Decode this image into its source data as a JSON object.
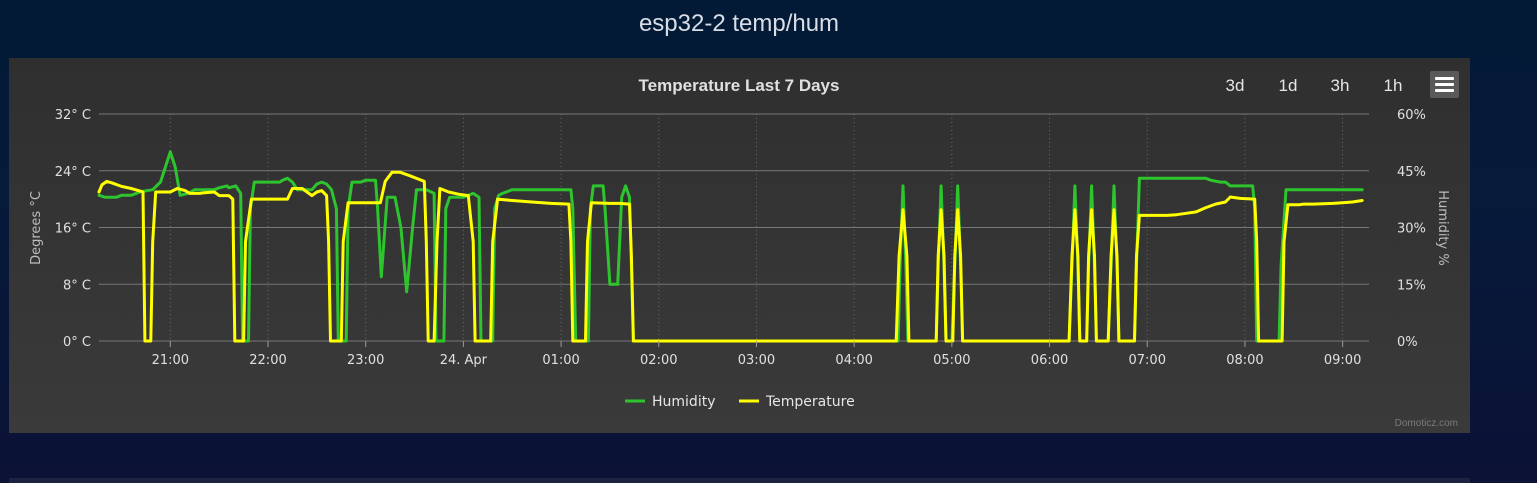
{
  "page": {
    "title": "esp32-2 temp/hum"
  },
  "toolbar": {
    "range_buttons": [
      "3d",
      "1d",
      "3h",
      "1h"
    ],
    "menu_icon": "hamburger-menu-icon"
  },
  "credits": "Domoticz.com",
  "colors": {
    "humidity": "#2ec42e",
    "temperature": "#ffff00",
    "panel": "#333333",
    "grid": "#707070"
  },
  "chart_data": {
    "type": "line",
    "title": "Temperature Last 7 Days",
    "x_axis": {
      "tick_labels": [
        "21:00",
        "22:00",
        "23:00",
        "24. Apr",
        "01:00",
        "02:00",
        "03:00",
        "04:00",
        "05:00",
        "06:00",
        "07:00",
        "08:00",
        "09:00"
      ],
      "tick_hours": [
        21,
        22,
        23,
        24,
        25,
        26,
        27,
        28,
        29,
        30,
        31,
        32,
        33
      ],
      "range_hours": [
        20.27,
        33.27
      ],
      "grid": "dotted vertical"
    },
    "y_axis_left": {
      "label": "Degrees °C",
      "tick_labels": [
        "0° C",
        "8° C",
        "16° C",
        "24° C",
        "32° C"
      ],
      "ticks": [
        0,
        8,
        16,
        24,
        32
      ],
      "range": [
        0,
        32
      ]
    },
    "y_axis_right": {
      "label": "Humidity %",
      "tick_labels": [
        "0%",
        "15%",
        "30%",
        "45%",
        "60%"
      ],
      "ticks": [
        0,
        15,
        30,
        45,
        60
      ],
      "range": [
        0,
        60
      ]
    },
    "legend": {
      "placement": "bottom-center",
      "items": [
        "Humidity",
        "Temperature"
      ]
    },
    "series": [
      {
        "name": "Humidity",
        "axis": "right",
        "color": "#2ec42e",
        "points": [
          [
            20.27,
            38.5
          ],
          [
            20.33,
            38
          ],
          [
            20.45,
            38
          ],
          [
            20.5,
            38.5
          ],
          [
            20.6,
            38.5
          ],
          [
            20.7,
            39.5
          ],
          [
            20.82,
            40
          ],
          [
            20.9,
            42
          ],
          [
            20.95,
            46
          ],
          [
            21.0,
            50
          ],
          [
            21.05,
            46
          ],
          [
            21.1,
            38.5
          ],
          [
            21.18,
            39
          ],
          [
            21.25,
            40
          ],
          [
            21.4,
            40
          ],
          [
            21.45,
            40
          ],
          [
            21.5,
            40.5
          ],
          [
            21.58,
            41
          ],
          [
            21.6,
            40.5
          ],
          [
            21.67,
            41
          ],
          [
            21.72,
            39
          ],
          [
            21.74,
            0
          ],
          [
            21.8,
            0
          ],
          [
            21.82,
            35
          ],
          [
            21.86,
            42
          ],
          [
            22.0,
            42
          ],
          [
            22.1,
            42
          ],
          [
            22.12,
            42
          ],
          [
            22.15,
            42.5
          ],
          [
            22.2,
            43
          ],
          [
            22.25,
            42
          ],
          [
            22.3,
            40
          ],
          [
            22.45,
            40
          ],
          [
            22.5,
            41.5
          ],
          [
            22.55,
            42
          ],
          [
            22.6,
            41.5
          ],
          [
            22.65,
            40
          ],
          [
            22.7,
            35
          ],
          [
            22.72,
            0
          ],
          [
            22.8,
            0
          ],
          [
            22.82,
            35
          ],
          [
            22.86,
            42
          ],
          [
            22.95,
            42
          ],
          [
            23.0,
            42.5
          ],
          [
            23.05,
            42.5
          ],
          [
            23.1,
            42.5
          ],
          [
            23.12,
            36
          ],
          [
            23.16,
            17
          ],
          [
            23.22,
            38
          ],
          [
            23.3,
            38
          ],
          [
            23.36,
            30
          ],
          [
            23.42,
            13
          ],
          [
            23.48,
            30
          ],
          [
            23.52,
            40
          ],
          [
            23.62,
            40
          ],
          [
            23.7,
            39
          ],
          [
            23.72,
            0
          ],
          [
            23.8,
            0
          ],
          [
            23.82,
            35
          ],
          [
            23.86,
            38
          ],
          [
            23.95,
            38
          ],
          [
            24.0,
            38
          ],
          [
            24.05,
            38.5
          ],
          [
            24.1,
            39
          ],
          [
            24.16,
            38
          ],
          [
            24.18,
            0
          ],
          [
            24.3,
            0
          ],
          [
            24.32,
            35
          ],
          [
            24.36,
            38.5
          ],
          [
            24.4,
            39
          ],
          [
            24.5,
            40
          ],
          [
            24.9,
            40
          ],
          [
            25.1,
            40
          ],
          [
            25.12,
            35
          ],
          [
            25.15,
            0
          ],
          [
            25.28,
            0
          ],
          [
            25.3,
            35
          ],
          [
            25.33,
            41
          ],
          [
            25.43,
            41
          ],
          [
            25.45,
            35
          ],
          [
            25.5,
            15
          ],
          [
            25.58,
            15
          ],
          [
            25.62,
            38
          ],
          [
            25.66,
            41
          ],
          [
            25.7,
            38
          ],
          [
            25.72,
            20
          ],
          [
            25.74,
            0
          ],
          [
            26.0,
            0
          ],
          [
            27.0,
            0
          ],
          [
            28.0,
            0
          ],
          [
            28.4,
            0
          ],
          [
            28.45,
            0
          ],
          [
            28.47,
            20
          ],
          [
            28.5,
            41
          ],
          [
            28.53,
            20
          ],
          [
            28.55,
            0
          ],
          [
            28.84,
            0
          ],
          [
            28.86,
            20
          ],
          [
            28.89,
            41
          ],
          [
            28.92,
            20
          ],
          [
            28.94,
            0
          ],
          [
            29.0,
            0
          ],
          [
            29.03,
            20
          ],
          [
            29.06,
            41
          ],
          [
            29.09,
            20
          ],
          [
            29.11,
            0
          ],
          [
            30.0,
            0
          ],
          [
            30.2,
            0
          ],
          [
            30.23,
            20
          ],
          [
            30.26,
            41
          ],
          [
            30.29,
            20
          ],
          [
            30.31,
            0
          ],
          [
            30.38,
            0
          ],
          [
            30.4,
            20
          ],
          [
            30.43,
            41
          ],
          [
            30.46,
            20
          ],
          [
            30.48,
            0
          ],
          [
            30.6,
            0
          ],
          [
            30.63,
            20
          ],
          [
            30.66,
            41
          ],
          [
            30.69,
            20
          ],
          [
            30.71,
            0
          ],
          [
            30.87,
            0
          ],
          [
            30.89,
            20
          ],
          [
            30.92,
            43
          ],
          [
            31.2,
            43
          ],
          [
            31.5,
            43
          ],
          [
            31.6,
            43
          ],
          [
            31.65,
            42.5
          ],
          [
            31.75,
            42
          ],
          [
            31.8,
            42
          ],
          [
            31.85,
            41
          ],
          [
            32.0,
            41
          ],
          [
            32.08,
            41
          ],
          [
            32.1,
            35
          ],
          [
            32.12,
            0
          ],
          [
            32.35,
            0
          ],
          [
            32.37,
            20
          ],
          [
            32.42,
            40
          ],
          [
            32.6,
            40
          ],
          [
            33.0,
            40
          ],
          [
            33.2,
            40
          ]
        ]
      },
      {
        "name": "Temperature",
        "axis": "left",
        "color": "#ffff00",
        "points": [
          [
            20.27,
            21
          ],
          [
            20.3,
            22
          ],
          [
            20.35,
            22.5
          ],
          [
            20.4,
            22.3
          ],
          [
            20.5,
            21.8
          ],
          [
            20.6,
            21.5
          ],
          [
            20.7,
            21.1
          ],
          [
            20.72,
            21
          ],
          [
            20.74,
            0
          ],
          [
            20.8,
            0
          ],
          [
            20.82,
            14
          ],
          [
            20.85,
            21
          ],
          [
            20.9,
            21
          ],
          [
            21.0,
            21
          ],
          [
            21.07,
            21.5
          ],
          [
            21.15,
            21.2
          ],
          [
            21.2,
            20.8
          ],
          [
            21.3,
            20.8
          ],
          [
            21.35,
            20.9
          ],
          [
            21.45,
            21
          ],
          [
            21.5,
            20.5
          ],
          [
            21.6,
            20.5
          ],
          [
            21.64,
            20
          ],
          [
            21.66,
            0
          ],
          [
            21.75,
            0
          ],
          [
            21.77,
            14
          ],
          [
            21.83,
            20
          ],
          [
            22.1,
            20
          ],
          [
            22.2,
            20
          ],
          [
            22.25,
            21.5
          ],
          [
            22.35,
            21.5
          ],
          [
            22.45,
            20.5
          ],
          [
            22.5,
            21
          ],
          [
            22.55,
            21.2
          ],
          [
            22.6,
            20.5
          ],
          [
            22.62,
            14
          ],
          [
            22.64,
            0
          ],
          [
            22.75,
            0
          ],
          [
            22.77,
            14
          ],
          [
            22.82,
            19.5
          ],
          [
            23.0,
            19.5
          ],
          [
            23.1,
            19.5
          ],
          [
            23.15,
            19.5
          ],
          [
            23.2,
            22.5
          ],
          [
            23.27,
            23.8
          ],
          [
            23.35,
            23.8
          ],
          [
            23.45,
            23.3
          ],
          [
            23.6,
            22.5
          ],
          [
            23.62,
            14
          ],
          [
            23.64,
            0
          ],
          [
            23.7,
            0
          ],
          [
            23.73,
            14
          ],
          [
            23.76,
            21.5
          ],
          [
            23.85,
            21
          ],
          [
            23.95,
            20.7
          ],
          [
            24.05,
            20.5
          ],
          [
            24.1,
            14
          ],
          [
            24.12,
            0
          ],
          [
            24.28,
            0
          ],
          [
            24.3,
            14
          ],
          [
            24.35,
            20
          ],
          [
            24.5,
            19.8
          ],
          [
            24.7,
            19.6
          ],
          [
            24.9,
            19.4
          ],
          [
            25.08,
            19.3
          ],
          [
            25.1,
            14
          ],
          [
            25.12,
            0
          ],
          [
            25.25,
            0
          ],
          [
            25.27,
            14
          ],
          [
            25.31,
            19.5
          ],
          [
            25.5,
            19.4
          ],
          [
            25.6,
            19.4
          ],
          [
            25.7,
            19.3
          ],
          [
            25.72,
            12
          ],
          [
            25.74,
            0
          ],
          [
            26.0,
            0
          ],
          [
            27.0,
            0
          ],
          [
            28.0,
            0
          ],
          [
            28.4,
            0
          ],
          [
            28.43,
            0
          ],
          [
            28.46,
            12
          ],
          [
            28.5,
            18.5
          ],
          [
            28.54,
            12
          ],
          [
            28.56,
            0
          ],
          [
            28.84,
            0
          ],
          [
            28.86,
            12
          ],
          [
            28.89,
            18.5
          ],
          [
            28.92,
            12
          ],
          [
            28.94,
            0
          ],
          [
            29.01,
            0
          ],
          [
            29.03,
            12
          ],
          [
            29.06,
            18.5
          ],
          [
            29.09,
            12
          ],
          [
            29.11,
            0
          ],
          [
            30.0,
            0
          ],
          [
            30.2,
            0
          ],
          [
            30.23,
            12
          ],
          [
            30.26,
            18.5
          ],
          [
            30.29,
            12
          ],
          [
            30.31,
            0
          ],
          [
            30.38,
            0
          ],
          [
            30.4,
            12
          ],
          [
            30.43,
            18.5
          ],
          [
            30.46,
            12
          ],
          [
            30.48,
            0
          ],
          [
            30.6,
            0
          ],
          [
            30.63,
            12
          ],
          [
            30.66,
            18.5
          ],
          [
            30.69,
            12
          ],
          [
            30.71,
            0
          ],
          [
            30.87,
            0
          ],
          [
            30.89,
            12
          ],
          [
            30.92,
            17.7
          ],
          [
            31.2,
            17.7
          ],
          [
            31.3,
            17.8
          ],
          [
            31.4,
            18
          ],
          [
            31.5,
            18.2
          ],
          [
            31.6,
            18.8
          ],
          [
            31.7,
            19.3
          ],
          [
            31.8,
            19.6
          ],
          [
            31.85,
            20.3
          ],
          [
            31.95,
            20.1
          ],
          [
            32.1,
            20
          ],
          [
            32.12,
            14
          ],
          [
            32.14,
            0
          ],
          [
            32.38,
            0
          ],
          [
            32.4,
            14
          ],
          [
            32.44,
            19.2
          ],
          [
            32.55,
            19.2
          ],
          [
            32.6,
            19.3
          ],
          [
            32.7,
            19.3
          ],
          [
            32.9,
            19.4
          ],
          [
            33.0,
            19.5
          ],
          [
            33.1,
            19.6
          ],
          [
            33.2,
            19.8
          ]
        ]
      }
    ]
  }
}
